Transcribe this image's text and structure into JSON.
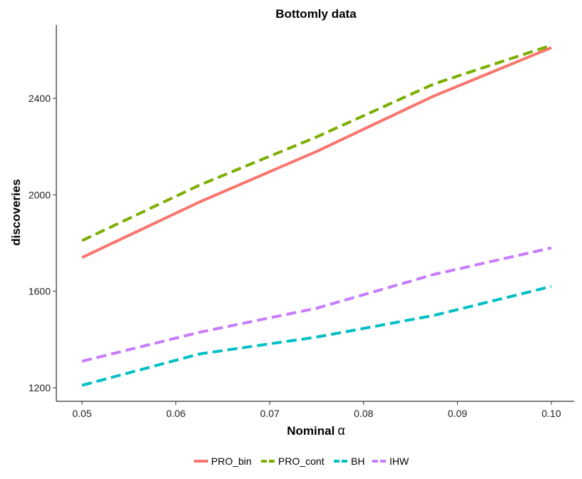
{
  "chart_data": {
    "type": "line",
    "title": "Bottomly data",
    "xlabel": "Nominal",
    "xlabel_symbol": "α",
    "ylabel": "discoveries",
    "xlim": [
      0.05,
      0.1
    ],
    "ylim": [
      1200,
      2640
    ],
    "x_ticks": [
      "0.05",
      "0.06",
      "0.07",
      "0.08",
      "0.09",
      "0.10"
    ],
    "y_ticks": [
      "1200",
      "1600",
      "2000",
      "2400"
    ],
    "grid": false,
    "legend_position": "bottom",
    "series": [
      {
        "name": "PRO_bin",
        "color": "#F8766D",
        "line_style": "solid",
        "x": [
          0.05,
          0.0625,
          0.075,
          0.0875,
          0.1
        ],
        "values": [
          1740,
          1970,
          2180,
          2410,
          2610
        ]
      },
      {
        "name": "PRO_cont",
        "color": "#7CAE00",
        "line_style": "dashed",
        "x": [
          0.05,
          0.0625,
          0.075,
          0.0875,
          0.1
        ],
        "values": [
          1810,
          2040,
          2240,
          2460,
          2620
        ]
      },
      {
        "name": "BH",
        "color": "#00BFC4",
        "line_style": "dashed",
        "x": [
          0.05,
          0.0625,
          0.075,
          0.0875,
          0.1
        ],
        "values": [
          1210,
          1340,
          1410,
          1500,
          1620
        ]
      },
      {
        "name": "IHW",
        "color": "#C77CFF",
        "line_style": "dashed",
        "x": [
          0.05,
          0.0625,
          0.075,
          0.0875,
          0.1
        ],
        "values": [
          1310,
          1430,
          1530,
          1670,
          1780
        ]
      }
    ]
  }
}
